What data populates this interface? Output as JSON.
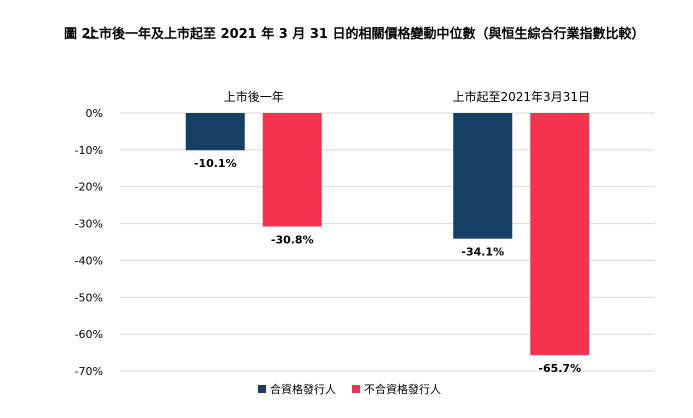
{
  "figure": {
    "label": "圖 2：",
    "title": "上市後一年及上市起至 2021 年 3 月 31 日的相關價格變動中位數（與恒生綜合行業指數比較）"
  },
  "chart_data": {
    "type": "bar",
    "categories": [
      "上市後一年",
      "上市起至2021年3月31日"
    ],
    "series": [
      {
        "name": "合資格發行人",
        "values": [
          -10.1,
          -34.1
        ],
        "labels": [
          "-10.1%",
          "-34.1%"
        ],
        "color": "#163F66"
      },
      {
        "name": "不合資格發行人",
        "values": [
          -30.8,
          -65.7
        ],
        "labels": [
          "-30.8%",
          "-65.7%"
        ],
        "color": "#F5334F"
      }
    ],
    "ylim": [
      -70,
      0
    ],
    "yticks": [
      0,
      -10,
      -20,
      -30,
      -40,
      -50,
      -60,
      -70
    ],
    "ytick_labels": [
      "0%",
      "-10%",
      "-20%",
      "-30%",
      "-40%",
      "-50%",
      "-60%",
      "-70%"
    ],
    "grid": true,
    "legend_position": "bottom",
    "category_labels_position": "top"
  }
}
